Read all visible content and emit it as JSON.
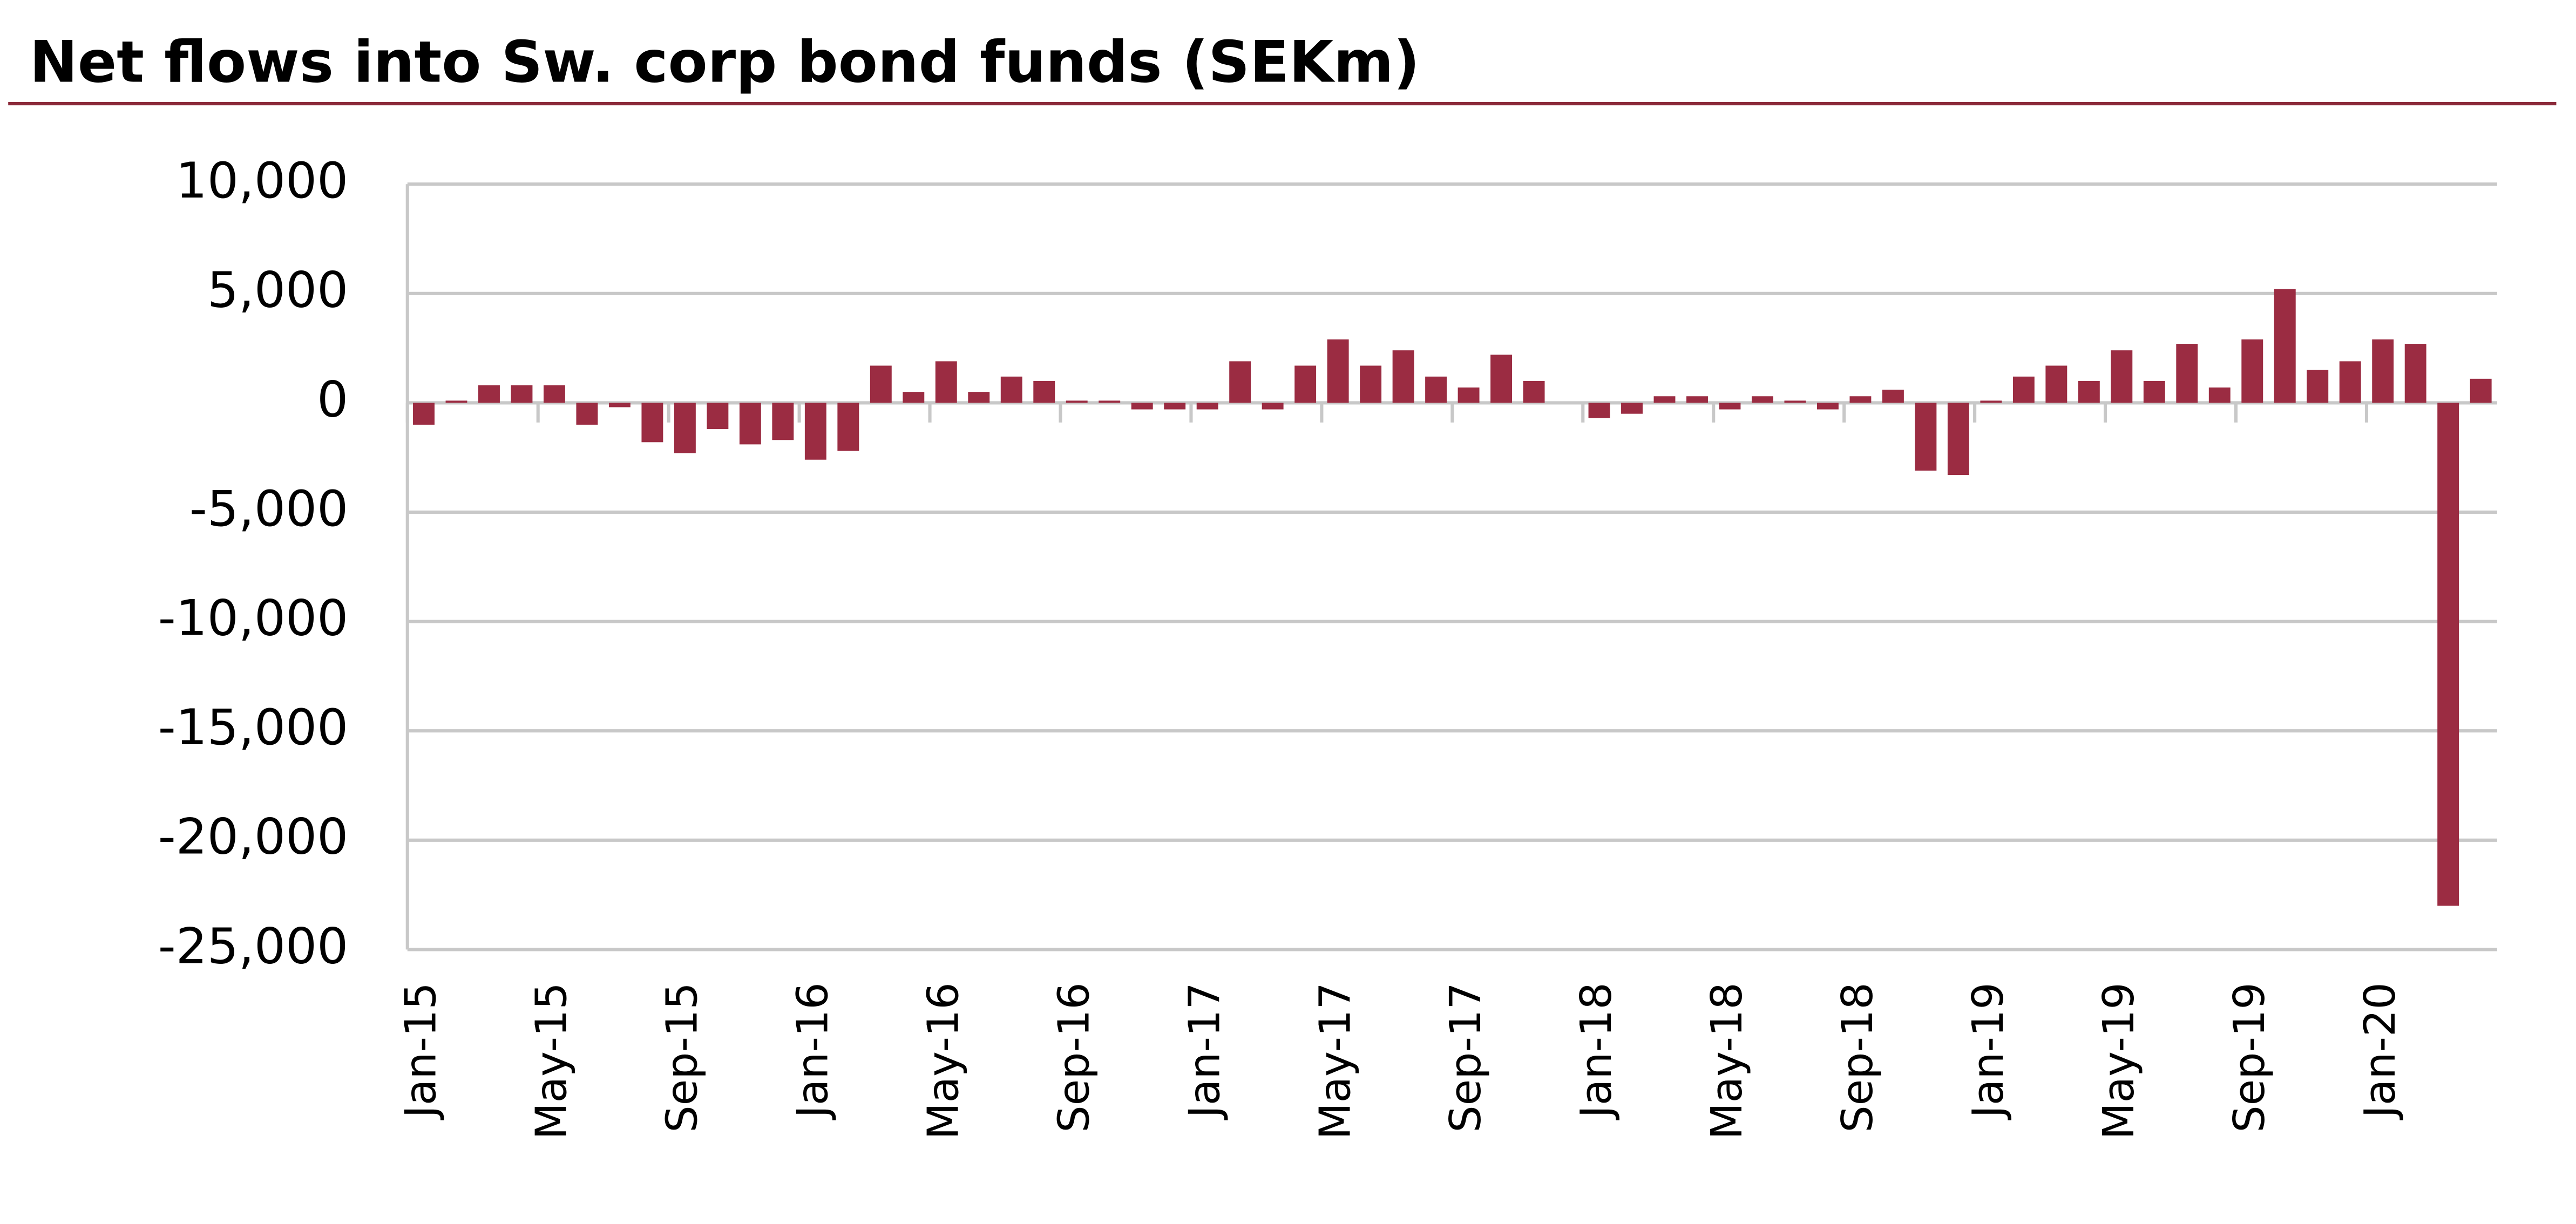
{
  "chart_data": {
    "type": "bar",
    "title": "Net flows into Sw. corp bond funds (SEKm)",
    "categories": [
      "Jan-15",
      null,
      null,
      null,
      "May-15",
      null,
      null,
      null,
      "Sep-15",
      null,
      null,
      null,
      "Jan-16",
      null,
      null,
      null,
      "May-16",
      null,
      null,
      null,
      "Sep-16",
      null,
      null,
      null,
      "Jan-17",
      null,
      null,
      null,
      "May-17",
      null,
      null,
      null,
      "Sep-17",
      null,
      null,
      null,
      "Jan-18",
      null,
      null,
      null,
      "May-18",
      null,
      null,
      null,
      "Sep-18",
      null,
      null,
      null,
      "Jan-19",
      null,
      null,
      null,
      "May-19",
      null,
      null,
      null,
      "Sep-19",
      null,
      null,
      null,
      "Jan-20",
      null,
      null,
      null
    ],
    "values": [
      -1000,
      100,
      800,
      800,
      800,
      -1000,
      -200,
      -1800,
      -2300,
      -1200,
      -1900,
      -1700,
      -2600,
      -2200,
      1700,
      500,
      1900,
      500,
      1200,
      1000,
      100,
      100,
      -300,
      -300,
      -300,
      1900,
      -300,
      1700,
      2900,
      1700,
      2400,
      1200,
      700,
      2200,
      1000,
      0,
      -700,
      -500,
      300,
      300,
      -300,
      300,
      100,
      -300,
      300,
      600,
      -3100,
      -3300,
      100,
      1200,
      1700,
      1000,
      2400,
      1000,
      2700,
      700,
      2900,
      5200,
      1500,
      1900,
      2900,
      2700,
      -23000,
      1100
    ],
    "color": "#9b2c42",
    "ylim": [
      -25000,
      10000
    ],
    "yticks": [
      {
        "value": 10000,
        "label": "10,000"
      },
      {
        "value": 5000,
        "label": "5,000"
      },
      0,
      {
        "value": -5000,
        "label": "-5,000"
      },
      {
        "value": -10000,
        "label": "-10,000"
      },
      {
        "value": -15000,
        "label": "-15,000"
      },
      {
        "value": -20000,
        "label": "-20,000"
      },
      {
        "value": -25000,
        "label": "-25,000"
      }
    ],
    "grid": true
  }
}
